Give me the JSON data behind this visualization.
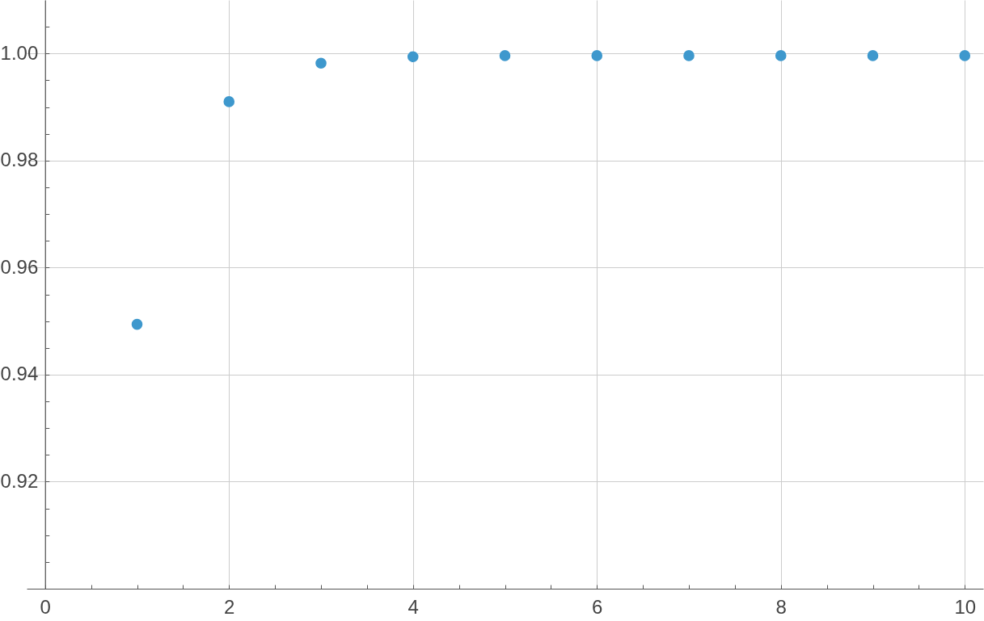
{
  "chart_data": {
    "type": "scatter",
    "x": [
      1,
      2,
      3,
      4,
      5,
      6,
      7,
      8,
      9,
      10
    ],
    "series": [
      {
        "color": "#3e98cd",
        "values": [
          0.9494,
          0.991,
          0.9982,
          0.9994,
          0.9996,
          0.9996,
          0.9996,
          0.9996,
          0.9996,
          0.9996
        ]
      }
    ],
    "xlim": [
      -0.2,
      10.2
    ],
    "xticks": [
      0,
      {
        "value": 0.5,
        "label": null
      },
      {
        "value": 1,
        "label": null
      },
      {
        "value": 1.5,
        "label": null
      },
      2,
      {
        "value": 2.5,
        "label": null
      },
      {
        "value": 3,
        "label": null
      },
      {
        "value": 3.5,
        "label": null
      },
      4,
      {
        "value": 4.5,
        "label": null
      },
      {
        "value": 5,
        "label": null
      },
      {
        "value": 5.5,
        "label": null
      },
      6,
      {
        "value": 6.5,
        "label": null
      },
      {
        "value": 7,
        "label": null
      },
      {
        "value": 7.5,
        "label": null
      },
      8,
      {
        "value": 8.5,
        "label": null
      },
      {
        "value": 9,
        "label": null
      },
      {
        "value": 9.5,
        "label": null
      },
      10
    ],
    "ylim": [
      0.9,
      1.01
    ],
    "yticks": [
      {
        "value": 0.905,
        "label": null
      },
      {
        "value": 0.91,
        "label": null
      },
      {
        "value": 0.915,
        "label": null
      },
      0.92,
      {
        "value": 0.925,
        "label": null
      },
      {
        "value": 0.93,
        "label": null
      },
      {
        "value": 0.935,
        "label": null
      },
      0.94,
      {
        "value": 0.945,
        "label": null
      },
      {
        "value": 0.95,
        "label": null
      },
      {
        "value": 0.955,
        "label": null
      },
      0.96,
      {
        "value": 0.965,
        "label": null
      },
      {
        "value": 0.97,
        "label": null
      },
      {
        "value": 0.975,
        "label": null
      },
      0.98,
      {
        "value": 0.985,
        "label": null
      },
      {
        "value": 0.99,
        "label": null
      },
      {
        "value": 0.995,
        "label": null
      },
      {
        "value": 1.0,
        "label": "1.00"
      },
      {
        "value": 1.005,
        "label": null
      }
    ],
    "grid": true,
    "marker": "circle"
  }
}
